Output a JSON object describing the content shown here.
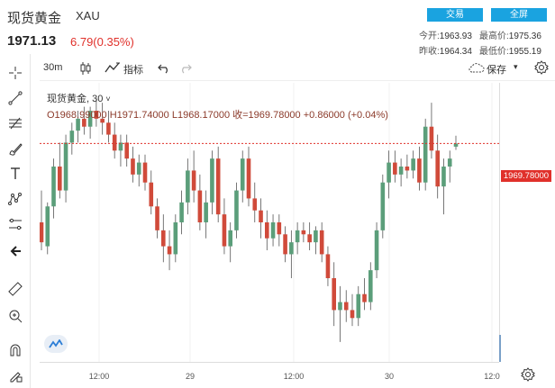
{
  "header": {
    "title": "现货黄金",
    "symbol": "XAU",
    "price": "1971.13",
    "change": "6.79(0.35%)",
    "trade_label": "交易",
    "fullscreen_label": "全屏",
    "stats": {
      "open_label": "今开:",
      "open_value": "1963.93",
      "high_label": "最高价:",
      "high_value": "1975.36",
      "prev_close_label": "昨收:",
      "prev_close_value": "1964.34",
      "low_label": "最低价:",
      "low_value": "1955.19"
    }
  },
  "toolbar": {
    "interval": "30m",
    "indicators_label": "指标",
    "save_label": "保存"
  },
  "legend": {
    "name": "现货黄金, 30",
    "ohlc": "O1968.99000  H1971.74000  L1968.17000  收=1969.78000  +0.86000  (+0.04%)"
  },
  "price_tag": "1969.78000",
  "time_axis": [
    "12:00",
    "29",
    "12:00",
    "30",
    "12:0"
  ],
  "colors": {
    "up": "#5b9e7a",
    "down": "#d04a3a",
    "accent": "#1aa3e0",
    "price_line": "#e0302a"
  },
  "left_tools": [
    "crosshair-icon",
    "trendline-icon",
    "fib-icon",
    "brush-icon",
    "text-icon",
    "pattern-icon",
    "measure-icon",
    "back-arrow-icon",
    "ruler-icon",
    "zoom-in-icon",
    "magnet-icon",
    "lock-pencil-icon"
  ],
  "chart_data": {
    "type": "candlestick",
    "interval": "30m",
    "last_price": 1969.78,
    "time_labels": [
      "12:00",
      "29",
      "12:00",
      "30",
      "12:0"
    ],
    "candles": [
      {
        "o": 1950,
        "h": 1958,
        "l": 1943,
        "c": 1945
      },
      {
        "o": 1944,
        "h": 1955,
        "l": 1942,
        "c": 1954
      },
      {
        "o": 1954,
        "h": 1966,
        "l": 1951,
        "c": 1964
      },
      {
        "o": 1964,
        "h": 1970,
        "l": 1956,
        "c": 1958
      },
      {
        "o": 1958,
        "h": 1972,
        "l": 1955,
        "c": 1970
      },
      {
        "o": 1970,
        "h": 1975,
        "l": 1967,
        "c": 1973
      },
      {
        "o": 1973,
        "h": 1978,
        "l": 1970,
        "c": 1976
      },
      {
        "o": 1976,
        "h": 1979,
        "l": 1972,
        "c": 1974
      },
      {
        "o": 1974,
        "h": 1979,
        "l": 1971,
        "c": 1978
      },
      {
        "o": 1978,
        "h": 1981,
        "l": 1974,
        "c": 1976
      },
      {
        "o": 1976,
        "h": 1980,
        "l": 1972,
        "c": 1975
      },
      {
        "o": 1975,
        "h": 1978,
        "l": 1970,
        "c": 1972
      },
      {
        "o": 1972,
        "h": 1975,
        "l": 1966,
        "c": 1968
      },
      {
        "o": 1968,
        "h": 1972,
        "l": 1964,
        "c": 1970
      },
      {
        "o": 1970,
        "h": 1972,
        "l": 1964,
        "c": 1966
      },
      {
        "o": 1966,
        "h": 1969,
        "l": 1960,
        "c": 1962
      },
      {
        "o": 1962,
        "h": 1967,
        "l": 1959,
        "c": 1965
      },
      {
        "o": 1965,
        "h": 1967,
        "l": 1958,
        "c": 1960
      },
      {
        "o": 1960,
        "h": 1963,
        "l": 1952,
        "c": 1954
      },
      {
        "o": 1954,
        "h": 1956,
        "l": 1946,
        "c": 1948
      },
      {
        "o": 1948,
        "h": 1952,
        "l": 1940,
        "c": 1944
      },
      {
        "o": 1944,
        "h": 1948,
        "l": 1938,
        "c": 1942
      },
      {
        "o": 1942,
        "h": 1952,
        "l": 1940,
        "c": 1950
      },
      {
        "o": 1950,
        "h": 1958,
        "l": 1947,
        "c": 1955
      },
      {
        "o": 1955,
        "h": 1966,
        "l": 1952,
        "c": 1963
      },
      {
        "o": 1963,
        "h": 1968,
        "l": 1955,
        "c": 1958
      },
      {
        "o": 1958,
        "h": 1962,
        "l": 1948,
        "c": 1950
      },
      {
        "o": 1950,
        "h": 1958,
        "l": 1946,
        "c": 1955
      },
      {
        "o": 1955,
        "h": 1968,
        "l": 1952,
        "c": 1966
      },
      {
        "o": 1966,
        "h": 1969,
        "l": 1950,
        "c": 1952
      },
      {
        "o": 1952,
        "h": 1956,
        "l": 1942,
        "c": 1944
      },
      {
        "o": 1944,
        "h": 1950,
        "l": 1940,
        "c": 1948
      },
      {
        "o": 1948,
        "h": 1960,
        "l": 1946,
        "c": 1958
      },
      {
        "o": 1958,
        "h": 1968,
        "l": 1955,
        "c": 1966
      },
      {
        "o": 1966,
        "h": 1969,
        "l": 1954,
        "c": 1956
      },
      {
        "o": 1956,
        "h": 1960,
        "l": 1950,
        "c": 1953
      },
      {
        "o": 1953,
        "h": 1956,
        "l": 1946,
        "c": 1950
      },
      {
        "o": 1950,
        "h": 1953,
        "l": 1943,
        "c": 1946
      },
      {
        "o": 1946,
        "h": 1952,
        "l": 1944,
        "c": 1950
      },
      {
        "o": 1950,
        "h": 1952,
        "l": 1944,
        "c": 1947
      },
      {
        "o": 1947,
        "h": 1949,
        "l": 1940,
        "c": 1942
      },
      {
        "o": 1942,
        "h": 1948,
        "l": 1936,
        "c": 1945
      },
      {
        "o": 1945,
        "h": 1950,
        "l": 1942,
        "c": 1948
      },
      {
        "o": 1948,
        "h": 1950,
        "l": 1945,
        "c": 1947
      },
      {
        "o": 1947,
        "h": 1950,
        "l": 1943,
        "c": 1945
      },
      {
        "o": 1945,
        "h": 1949,
        "l": 1942,
        "c": 1948
      },
      {
        "o": 1948,
        "h": 1950,
        "l": 1940,
        "c": 1942
      },
      {
        "o": 1942,
        "h": 1944,
        "l": 1934,
        "c": 1936
      },
      {
        "o": 1936,
        "h": 1940,
        "l": 1924,
        "c": 1928
      },
      {
        "o": 1928,
        "h": 1934,
        "l": 1920,
        "c": 1930
      },
      {
        "o": 1930,
        "h": 1933,
        "l": 1925,
        "c": 1928
      },
      {
        "o": 1928,
        "h": 1932,
        "l": 1924,
        "c": 1926
      },
      {
        "o": 1926,
        "h": 1934,
        "l": 1924,
        "c": 1932
      },
      {
        "o": 1932,
        "h": 1936,
        "l": 1928,
        "c": 1930
      },
      {
        "o": 1930,
        "h": 1940,
        "l": 1928,
        "c": 1938
      },
      {
        "o": 1938,
        "h": 1950,
        "l": 1936,
        "c": 1948
      },
      {
        "o": 1948,
        "h": 1962,
        "l": 1946,
        "c": 1960
      },
      {
        "o": 1960,
        "h": 1968,
        "l": 1956,
        "c": 1965
      },
      {
        "o": 1965,
        "h": 1968,
        "l": 1960,
        "c": 1962
      },
      {
        "o": 1962,
        "h": 1966,
        "l": 1959,
        "c": 1964
      },
      {
        "o": 1964,
        "h": 1967,
        "l": 1961,
        "c": 1963
      },
      {
        "o": 1963,
        "h": 1968,
        "l": 1961,
        "c": 1966
      },
      {
        "o": 1966,
        "h": 1969,
        "l": 1958,
        "c": 1960
      },
      {
        "o": 1960,
        "h": 1976,
        "l": 1958,
        "c": 1974
      },
      {
        "o": 1974,
        "h": 1980,
        "l": 1966,
        "c": 1968
      },
      {
        "o": 1968,
        "h": 1972,
        "l": 1956,
        "c": 1959
      },
      {
        "o": 1959,
        "h": 1966,
        "l": 1952,
        "c": 1964
      },
      {
        "o": 1964,
        "h": 1968,
        "l": 1960,
        "c": 1966
      },
      {
        "o": 1968.99,
        "h": 1971.74,
        "l": 1968.17,
        "c": 1969.78
      }
    ]
  }
}
